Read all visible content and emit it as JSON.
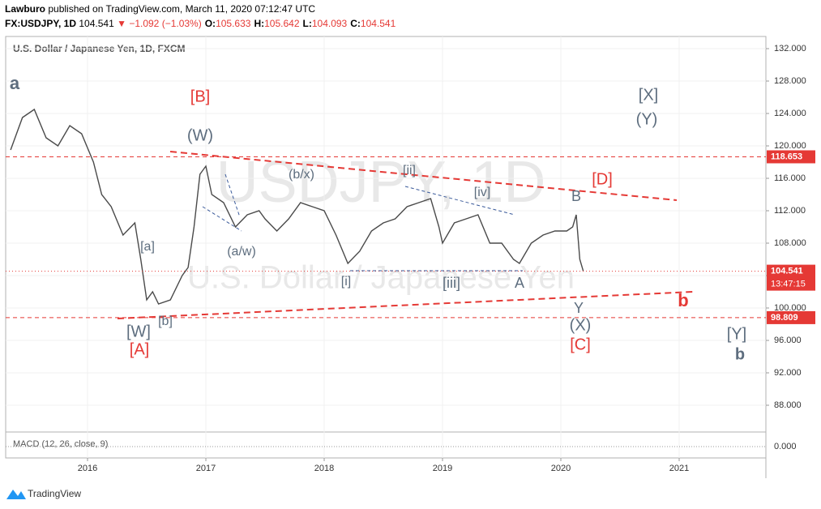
{
  "header": {
    "author": "Lawburo",
    "published": "published on TradingView.com, March 11, 2020 07:12:47 UTC",
    "symbol": "FX:USDJPY, 1D",
    "last": "104.541",
    "change": "▼ −1.092 (−1.03%)",
    "ohlc": [
      {
        "label": "O:",
        "value": "105.633"
      },
      {
        "label": "H:",
        "value": "105.642"
      },
      {
        "label": "L:",
        "value": "104.093"
      },
      {
        "label": "C:",
        "value": "104.541"
      }
    ]
  },
  "chart_data": {
    "type": "line",
    "title": "U.S. Dollar / Japanese Yen, 1D, FXCM",
    "watermark": "USDJPY, 1D",
    "watermark_sub": "U.S. Dollar / Japanese Yen",
    "x": [
      2015.35,
      2015.45,
      2015.55,
      2015.65,
      2015.75,
      2015.85,
      2015.95,
      2016.05,
      2016.12,
      2016.2,
      2016.3,
      2016.4,
      2016.45,
      2016.5,
      2016.55,
      2016.6,
      2016.7,
      2016.8,
      2016.85,
      2016.9,
      2016.95,
      2017.0,
      2017.05,
      2017.15,
      2017.25,
      2017.35,
      2017.45,
      2017.5,
      2017.6,
      2017.7,
      2017.8,
      2017.9,
      2018.0,
      2018.1,
      2018.2,
      2018.3,
      2018.4,
      2018.5,
      2018.6,
      2018.7,
      2018.8,
      2018.9,
      2018.97,
      2019.0,
      2019.1,
      2019.2,
      2019.3,
      2019.4,
      2019.5,
      2019.6,
      2019.65,
      2019.75,
      2019.85,
      2019.95,
      2020.05,
      2020.1,
      2020.13,
      2020.16,
      2020.19
    ],
    "series": [
      {
        "name": "USDJPY",
        "color": "#4a4a4a",
        "values": [
          119.5,
          123.5,
          124.5,
          121,
          120,
          122.5,
          121.5,
          118,
          114,
          112.5,
          109,
          110.5,
          106,
          101,
          102,
          100.5,
          101,
          104,
          105,
          110,
          116.5,
          117.5,
          114,
          113,
          110,
          111.5,
          112,
          111,
          109.5,
          111,
          113,
          112.5,
          112,
          109,
          105.5,
          107,
          109.5,
          110.5,
          111,
          112.5,
          113,
          113.5,
          110,
          108,
          110.5,
          111,
          111.5,
          108,
          108,
          106,
          105.5,
          108,
          109,
          109.5,
          109.5,
          110,
          111.5,
          106,
          104.541
        ]
      }
    ],
    "xlim": [
      2015.315,
      2021.733
    ],
    "xticks": [
      2016,
      2017,
      2018,
      2019,
      2020,
      2021
    ],
    "ylim": [
      85,
      133.5
    ],
    "yticks": [
      {
        "value": 88,
        "label": "88.000"
      },
      {
        "value": 92,
        "label": "92.000"
      },
      {
        "value": 96,
        "label": "96.000"
      },
      {
        "value": 100,
        "label": "100.000"
      },
      {
        "value": 104,
        "label": "104.000"
      },
      {
        "value": 108,
        "label": "108.000"
      },
      {
        "value": 112,
        "label": "112.000"
      },
      {
        "value": 116,
        "label": "116.000"
      },
      {
        "value": 120,
        "label": "120.000"
      },
      {
        "value": 124,
        "label": "124.000"
      },
      {
        "value": 128,
        "label": "128.000"
      },
      {
        "value": 132,
        "label": "132.000"
      }
    ],
    "levels": [
      {
        "value": 118.653,
        "color": "#e53935"
      },
      {
        "value": 98.809,
        "color": "#e53935"
      }
    ],
    "last_price": 104.541,
    "countdown": "13:47:15",
    "macd": {
      "label": "MACD (12, 26, close, 9)",
      "zero": {
        "value": 0,
        "label": "0.000"
      }
    },
    "annotations": [
      {
        "text": "a",
        "color": "#5d6d7e"
      },
      {
        "text": "[B]",
        "color": "#e53935"
      },
      {
        "text": "(W)",
        "color": "#5d6d7e"
      },
      {
        "text": "[X]",
        "color": "#5d6d7e"
      },
      {
        "text": "(Y)",
        "color": "#5d6d7e"
      },
      {
        "text": "(b/x)",
        "color": "#5d6d7e"
      },
      {
        "text": "[ii]",
        "color": "#5d6d7e"
      },
      {
        "text": "[iv]",
        "color": "#5d6d7e"
      },
      {
        "text": "[D]",
        "color": "#e53935"
      },
      {
        "text": "B",
        "color": "#5d6d7e"
      },
      {
        "text": "[a]",
        "color": "#5d6d7e"
      },
      {
        "text": "(a/w)",
        "color": "#5d6d7e"
      },
      {
        "text": "[i]",
        "color": "#5d6d7e"
      },
      {
        "text": "[iii]",
        "color": "#5d6d7e"
      },
      {
        "text": "A",
        "color": "#5d6d7e"
      },
      {
        "text": "Y",
        "color": "#5d6d7e"
      },
      {
        "text": "b",
        "color": "#e53935"
      },
      {
        "text": "[W]",
        "color": "#5d6d7e"
      },
      {
        "text": "[b]",
        "color": "#5d6d7e"
      },
      {
        "text": "[A]",
        "color": "#e53935"
      },
      {
        "text": "(X)",
        "color": "#5d6d7e"
      },
      {
        "text": "[C]",
        "color": "#e53935"
      },
      {
        "text": "[Y]",
        "color": "#5d6d7e"
      },
      {
        "text": "b",
        "color": "#5d6d7e"
      }
    ]
  },
  "footer": {
    "brand": "TradingView"
  }
}
